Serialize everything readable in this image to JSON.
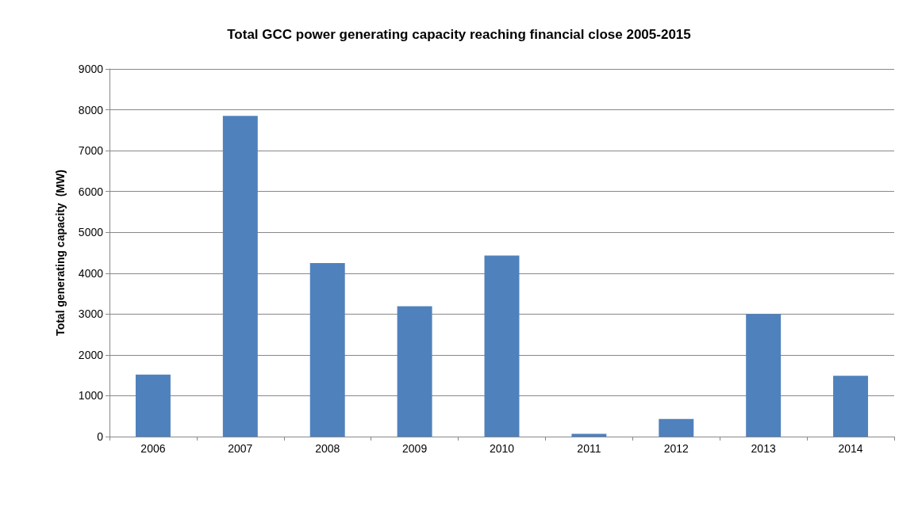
{
  "chart_data": {
    "type": "bar",
    "title": "Total GCC power generating capacity reaching financial close 2005-2015",
    "ylabel": "Total generating capacity  (MW)",
    "categories": [
      "2006",
      "2007",
      "2008",
      "2009",
      "2010",
      "2011",
      "2012",
      "2013",
      "2014"
    ],
    "values": [
      1520,
      7850,
      4250,
      3190,
      4430,
      70,
      430,
      3000,
      1490
    ],
    "color": "#4f81bd",
    "ylim": [
      0,
      9000
    ],
    "yticks": [
      0,
      1000,
      2000,
      3000,
      4000,
      5000,
      6000,
      7000,
      8000,
      9000
    ],
    "grid": "y"
  }
}
